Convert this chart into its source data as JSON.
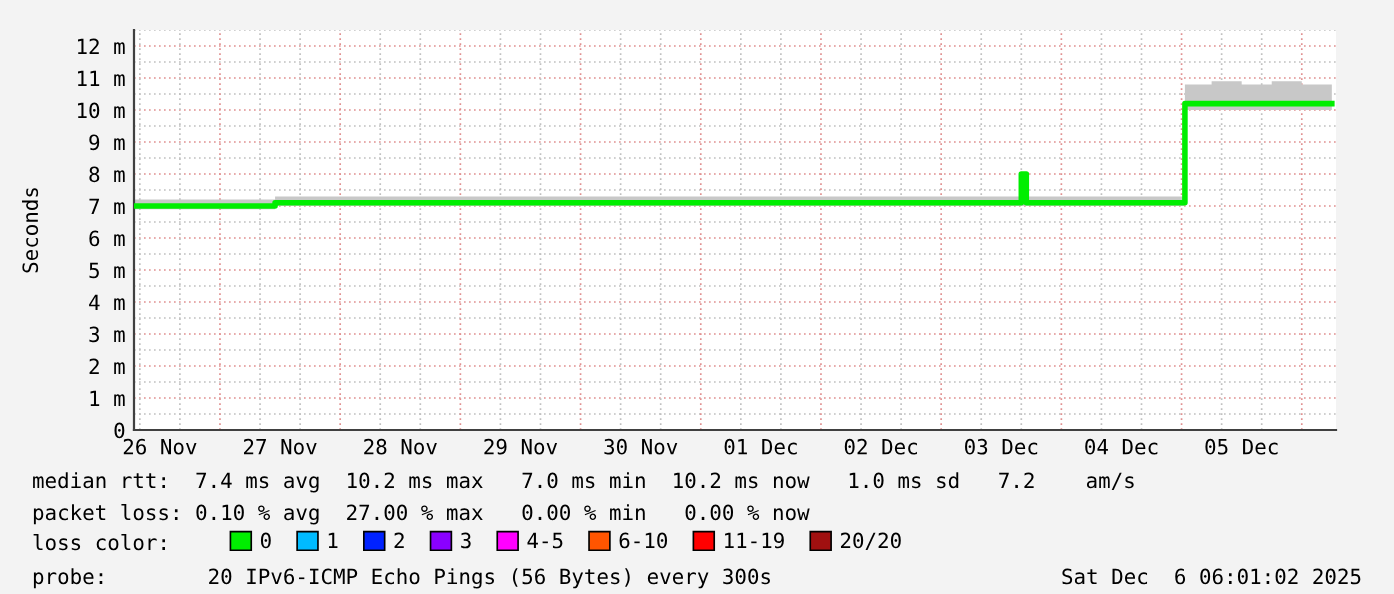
{
  "chart_data": {
    "type": "line",
    "ylabel": "Seconds",
    "x": [
      "2025-11-26T07:00",
      "2025-11-26T18:00",
      "2025-11-27T06:00",
      "2025-11-27T10:00",
      "2025-11-27T11:00",
      "2025-11-27T18:00",
      "2025-11-28T06:00",
      "2025-11-28T18:00",
      "2025-11-29T06:00",
      "2025-11-29T18:00",
      "2025-11-30T06:00",
      "2025-11-30T18:00",
      "2025-12-01T06:00",
      "2025-12-01T18:00",
      "2025-12-02T06:00",
      "2025-12-02T18:00",
      "2025-12-03T06:00",
      "2025-12-03T14:00",
      "2025-12-03T15:00",
      "2025-12-03T16:00",
      "2025-12-03T17:00",
      "2025-12-03T18:00",
      "2025-12-04T06:00",
      "2025-12-04T18:00",
      "2025-12-05T00:20",
      "2025-12-05T00:40",
      "2025-12-05T06:00",
      "2025-12-05T12:00",
      "2025-12-05T18:00",
      "2025-12-06T00:00",
      "2025-12-06T06:00"
    ],
    "series": [
      {
        "name": "0",
        "color": "#00ee00",
        "values": [
          7.0,
          7.0,
          7.0,
          7.0,
          7.1,
          7.1,
          7.1,
          7.1,
          7.1,
          7.1,
          7.1,
          7.1,
          7.1,
          7.1,
          7.1,
          7.1,
          7.1,
          7.1,
          7.1,
          8.0,
          7.1,
          7.1,
          7.1,
          7.1,
          7.1,
          10.2,
          10.2,
          10.2,
          10.2,
          10.2,
          10.2
        ],
        "lower": [
          6.9,
          6.9,
          6.9,
          6.9,
          7.0,
          7.0,
          7.0,
          7.0,
          7.0,
          7.0,
          7.0,
          7.0,
          7.0,
          7.0,
          7.0,
          7.0,
          7.0,
          7.0,
          7.0,
          7.0,
          7.0,
          7.0,
          7.0,
          7.0,
          7.0,
          10.0,
          10.0,
          10.0,
          10.0,
          10.0,
          10.0
        ],
        "upper": [
          7.2,
          7.2,
          7.2,
          7.2,
          7.3,
          7.3,
          7.3,
          7.3,
          7.3,
          7.3,
          7.3,
          7.3,
          7.3,
          7.3,
          7.3,
          7.3,
          7.3,
          7.3,
          7.3,
          8.0,
          7.3,
          7.3,
          7.3,
          7.3,
          7.3,
          10.8,
          10.9,
          10.8,
          10.9,
          10.8,
          10.8
        ]
      },
      {
        "name": "1",
        "color": "#00bbff",
        "values": [
          null,
          null,
          null,
          null,
          null,
          null,
          null,
          null,
          null,
          null,
          null,
          null,
          null,
          null,
          null,
          null,
          null,
          null,
          null,
          null,
          null,
          null,
          null,
          null,
          null,
          null,
          null,
          null,
          null,
          null,
          null
        ]
      },
      {
        "name": "2",
        "color": "#0022ff",
        "values": [
          null,
          null,
          null,
          null,
          null,
          null,
          null,
          null,
          null,
          null,
          null,
          null,
          null,
          null,
          null,
          null,
          null,
          null,
          null,
          null,
          null,
          null,
          null,
          null,
          null,
          null,
          null,
          null,
          null,
          null,
          null
        ]
      },
      {
        "name": "3",
        "color": "#8a00ff",
        "values": [
          null,
          null,
          null,
          null,
          null,
          null,
          null,
          null,
          null,
          null,
          null,
          null,
          null,
          null,
          null,
          null,
          null,
          null,
          null,
          null,
          null,
          null,
          null,
          null,
          null,
          null,
          null,
          null,
          null,
          null,
          null
        ]
      },
      {
        "name": "4-5",
        "color": "#ff00ff",
        "values": [
          null,
          null,
          null,
          null,
          null,
          null,
          null,
          null,
          null,
          null,
          null,
          null,
          null,
          null,
          null,
          null,
          null,
          null,
          null,
          null,
          null,
          null,
          null,
          null,
          null,
          null,
          null,
          null,
          null,
          null,
          null
        ]
      },
      {
        "name": "6-10",
        "color": "#ff5500",
        "values": [
          null,
          null,
          null,
          null,
          null,
          null,
          null,
          null,
          null,
          null,
          null,
          null,
          null,
          null,
          null,
          null,
          null,
          null,
          null,
          null,
          null,
          null,
          null,
          null,
          null,
          null,
          null,
          null,
          null,
          null,
          null
        ]
      },
      {
        "name": "11-19",
        "color": "#ff0000",
        "values": [
          null,
          null,
          null,
          null,
          null,
          null,
          null,
          null,
          null,
          null,
          null,
          null,
          null,
          null,
          null,
          null,
          null,
          null,
          null,
          null,
          null,
          null,
          null,
          null,
          null,
          null,
          null,
          null,
          null,
          null,
          null
        ]
      },
      {
        "name": "20/20",
        "color": "#a01010",
        "values": [
          null,
          null,
          null,
          null,
          null,
          null,
          null,
          null,
          null,
          null,
          null,
          null,
          null,
          null,
          null,
          null,
          null,
          null,
          null,
          null,
          null,
          null,
          null,
          null,
          null,
          null,
          null,
          null,
          null,
          null,
          null
        ]
      }
    ],
    "legend_title": "loss color:",
    "legend": "bottom",
    "grid": true,
    "marker": "none",
    "line_style": "solid",
    "xlim": [
      "2025-11-26T06:50",
      "2025-12-06T06:50"
    ],
    "xticks": [
      {
        "value": "2025-11-26T12:00",
        "label": "26 Nov"
      },
      {
        "value": "2025-11-27T12:00",
        "label": "27 Nov"
      },
      {
        "value": "2025-11-28T12:00",
        "label": "28 Nov"
      },
      {
        "value": "2025-11-29T12:00",
        "label": "29 Nov"
      },
      {
        "value": "2025-11-30T12:00",
        "label": "30 Nov"
      },
      {
        "value": "2025-12-01T12:00",
        "label": "01 Dec"
      },
      {
        "value": "2025-12-02T12:00",
        "label": "02 Dec"
      },
      {
        "value": "2025-12-03T12:00",
        "label": "03 Dec"
      },
      {
        "value": "2025-12-04T12:00",
        "label": "04 Dec"
      },
      {
        "value": "2025-12-05T12:00",
        "label": "05 Dec"
      }
    ],
    "ylim": [
      0,
      12.5
    ],
    "yticks": [
      0,
      {
        "value": 1,
        "label": "1 m"
      },
      {
        "value": 2,
        "label": "2 m"
      },
      {
        "value": 3,
        "label": "3 m"
      },
      {
        "value": 4,
        "label": "4 m"
      },
      {
        "value": 5,
        "label": "5 m"
      },
      {
        "value": 6,
        "label": "6 m"
      },
      {
        "value": 7,
        "label": "7 m"
      },
      {
        "value": 8,
        "label": "8 m"
      },
      {
        "value": 9,
        "label": "9 m"
      },
      {
        "value": 10,
        "label": "10 m"
      },
      {
        "value": 11,
        "label": "11 m"
      },
      {
        "value": 12,
        "label": "12 m"
      }
    ],
    "annotations": [
      "median rtt:  7.4 ms avg  10.2 ms max   7.0 ms min  10.2 ms now   1.0 ms sd   7.2    am/s",
      "packet loss: 0.10 % avg  27.00 % max   0.00 % min   0.00 % now",
      "probe:        20 IPv6-ICMP Echo Pings (56 Bytes) every 300s",
      "Sat Dec  6 06:01:02 2025"
    ]
  }
}
